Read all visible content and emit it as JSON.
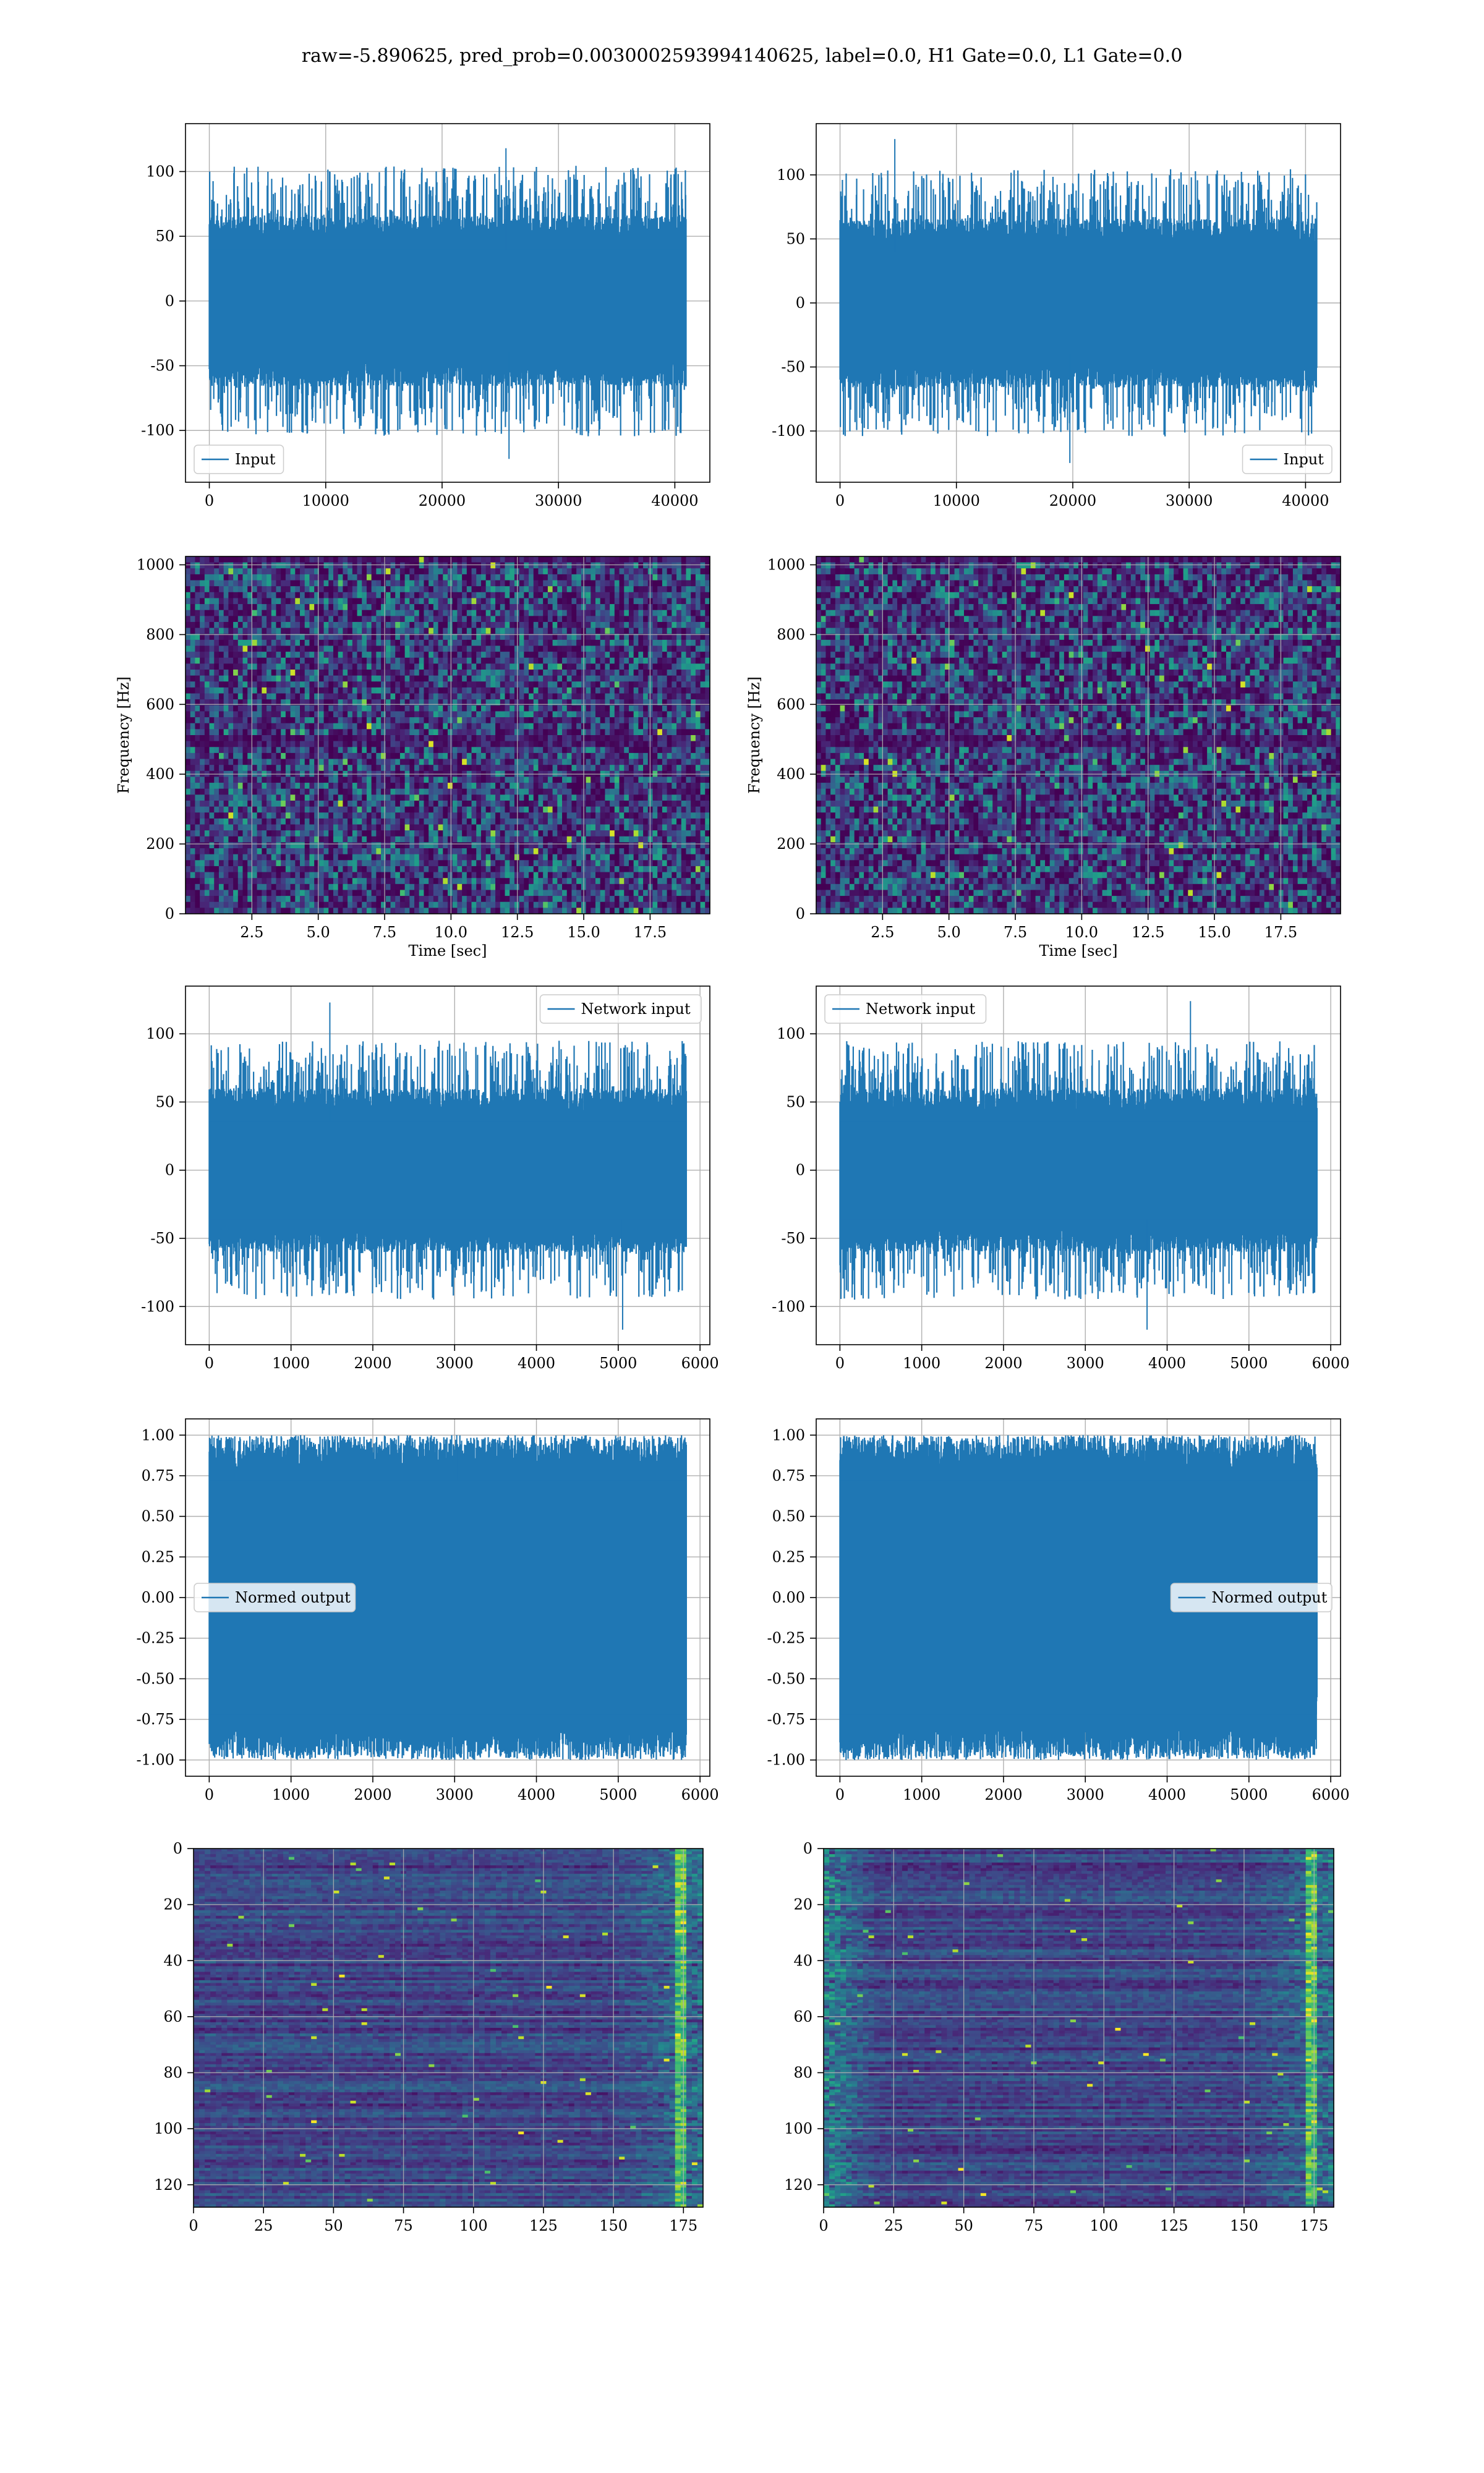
{
  "title": "raw=-5.890625, pred_prob=0.0030002593994140625, label=0.0, H1 Gate=0.0, L1 Gate=0.0",
  "colors": {
    "line": "#1f77b4",
    "grid": "#b0b0b0",
    "viridis_dark": "#440154",
    "viridis_mid": "#21918c",
    "viridis_bright": "#fde725"
  },
  "chart_data": [
    {
      "id": "input-left",
      "type": "line",
      "row": 0,
      "col": 0,
      "series": [
        {
          "name": "Input",
          "length": 40960,
          "amplitude": 55,
          "peak_max": 118,
          "peak_min": -122
        }
      ],
      "xlim": [
        -2048,
        43008
      ],
      "ylim": [
        -140,
        137
      ],
      "xticks": [
        0,
        10000,
        20000,
        30000,
        40000
      ],
      "yticks": [
        -100,
        -50,
        0,
        50,
        100
      ],
      "legend": "lower left",
      "grid": true,
      "xlabel": "",
      "ylabel": ""
    },
    {
      "id": "input-right",
      "type": "line",
      "row": 0,
      "col": 1,
      "series": [
        {
          "name": "Input",
          "length": 40960,
          "amplitude": 55,
          "peak_max": 128,
          "peak_min": -125
        }
      ],
      "xlim": [
        -2048,
        43008
      ],
      "ylim": [
        -140,
        140
      ],
      "xticks": [
        0,
        10000,
        20000,
        30000,
        40000
      ],
      "yticks": [
        -100,
        -50,
        0,
        50,
        100
      ],
      "legend": "lower right",
      "grid": true,
      "xlabel": "",
      "ylabel": ""
    },
    {
      "id": "spectrogram-left",
      "type": "heatmap",
      "row": 1,
      "col": 0,
      "x_range": [
        0,
        19.75
      ],
      "y_range": [
        0,
        1024
      ],
      "colormap": "viridis",
      "xticks": [
        "2.5",
        "5.0",
        "7.5",
        "10.0",
        "12.5",
        "15.0",
        "17.5"
      ],
      "yticks": [
        0,
        200,
        400,
        600,
        800,
        1000
      ],
      "xlabel": "Time [sec]",
      "ylabel": "Frequency [Hz]",
      "grid": true
    },
    {
      "id": "spectrogram-right",
      "type": "heatmap",
      "row": 1,
      "col": 1,
      "x_range": [
        0,
        19.75
      ],
      "y_range": [
        0,
        1024
      ],
      "colormap": "viridis",
      "xticks": [
        "2.5",
        "5.0",
        "7.5",
        "10.0",
        "12.5",
        "15.0",
        "17.5"
      ],
      "yticks": [
        0,
        200,
        400,
        600,
        800,
        1000
      ],
      "xlabel": "Time [sec]",
      "ylabel": "Frequency [Hz]",
      "grid": true
    },
    {
      "id": "network-input-left",
      "type": "line",
      "row": 2,
      "col": 0,
      "series": [
        {
          "name": "Network input",
          "length": 5832,
          "amplitude": 50,
          "peak_max": 123,
          "peak_min": -117
        }
      ],
      "xlim": [
        -290,
        6120
      ],
      "ylim": [
        -128,
        135
      ],
      "xticks": [
        0,
        1000,
        2000,
        3000,
        4000,
        5000,
        6000
      ],
      "yticks": [
        -100,
        -50,
        0,
        50,
        100
      ],
      "legend": "upper right",
      "grid": true,
      "xlabel": "",
      "ylabel": ""
    },
    {
      "id": "network-input-right",
      "type": "line",
      "row": 2,
      "col": 1,
      "series": [
        {
          "name": "Network input",
          "length": 5832,
          "amplitude": 50,
          "peak_max": 124,
          "peak_min": -117
        }
      ],
      "xlim": [
        -290,
        6120
      ],
      "ylim": [
        -128,
        135
      ],
      "xticks": [
        0,
        1000,
        2000,
        3000,
        4000,
        5000,
        6000
      ],
      "yticks": [
        -100,
        -50,
        0,
        50,
        100
      ],
      "legend": "upper left",
      "grid": true,
      "xlabel": "",
      "ylabel": ""
    },
    {
      "id": "normed-output-left",
      "type": "line",
      "row": 3,
      "col": 0,
      "series": [
        {
          "name": "Normed output",
          "length": 5832,
          "amplitude": 1.0,
          "peak_max": 1.0,
          "peak_min": -1.0
        }
      ],
      "xlim": [
        -290,
        6120
      ],
      "ylim": [
        -1.1,
        1.1
      ],
      "xticks": [
        0,
        1000,
        2000,
        3000,
        4000,
        5000,
        6000
      ],
      "yticks": [
        "-1.00",
        "-0.75",
        "-0.50",
        "-0.25",
        "0.00",
        "0.25",
        "0.50",
        "0.75",
        "1.00"
      ],
      "legend": "center left",
      "grid": true,
      "xlabel": "",
      "ylabel": ""
    },
    {
      "id": "normed-output-right",
      "type": "line",
      "row": 3,
      "col": 1,
      "series": [
        {
          "name": "Normed output",
          "length": 5832,
          "amplitude": 1.0,
          "peak_max": 1.0,
          "peak_min": -1.0
        }
      ],
      "xlim": [
        -290,
        6120
      ],
      "ylim": [
        -1.1,
        1.1
      ],
      "xticks": [
        0,
        1000,
        2000,
        3000,
        4000,
        5000,
        6000
      ],
      "yticks": [
        "-1.00",
        "-0.75",
        "-0.50",
        "-0.25",
        "0.00",
        "0.25",
        "0.50",
        "0.75",
        "1.00"
      ],
      "legend": "center right",
      "grid": true,
      "xlabel": "",
      "ylabel": ""
    },
    {
      "id": "feature-map-left",
      "type": "heatmap",
      "row": 4,
      "col": 0,
      "x_range": [
        0,
        182
      ],
      "y_range": [
        128,
        0
      ],
      "colormap": "viridis",
      "xticks": [
        0,
        25,
        50,
        75,
        100,
        125,
        150,
        175
      ],
      "yticks": [
        0,
        20,
        40,
        60,
        80,
        100,
        120
      ],
      "grid": true,
      "xlabel": "",
      "ylabel": ""
    },
    {
      "id": "feature-map-right",
      "type": "heatmap",
      "row": 4,
      "col": 1,
      "x_range": [
        0,
        182
      ],
      "y_range": [
        128,
        0
      ],
      "colormap": "viridis",
      "xticks": [
        0,
        25,
        50,
        75,
        100,
        125,
        150,
        175
      ],
      "yticks": [
        0,
        20,
        40,
        60,
        80,
        100,
        120
      ],
      "grid": true,
      "xlabel": "",
      "ylabel": ""
    }
  ]
}
